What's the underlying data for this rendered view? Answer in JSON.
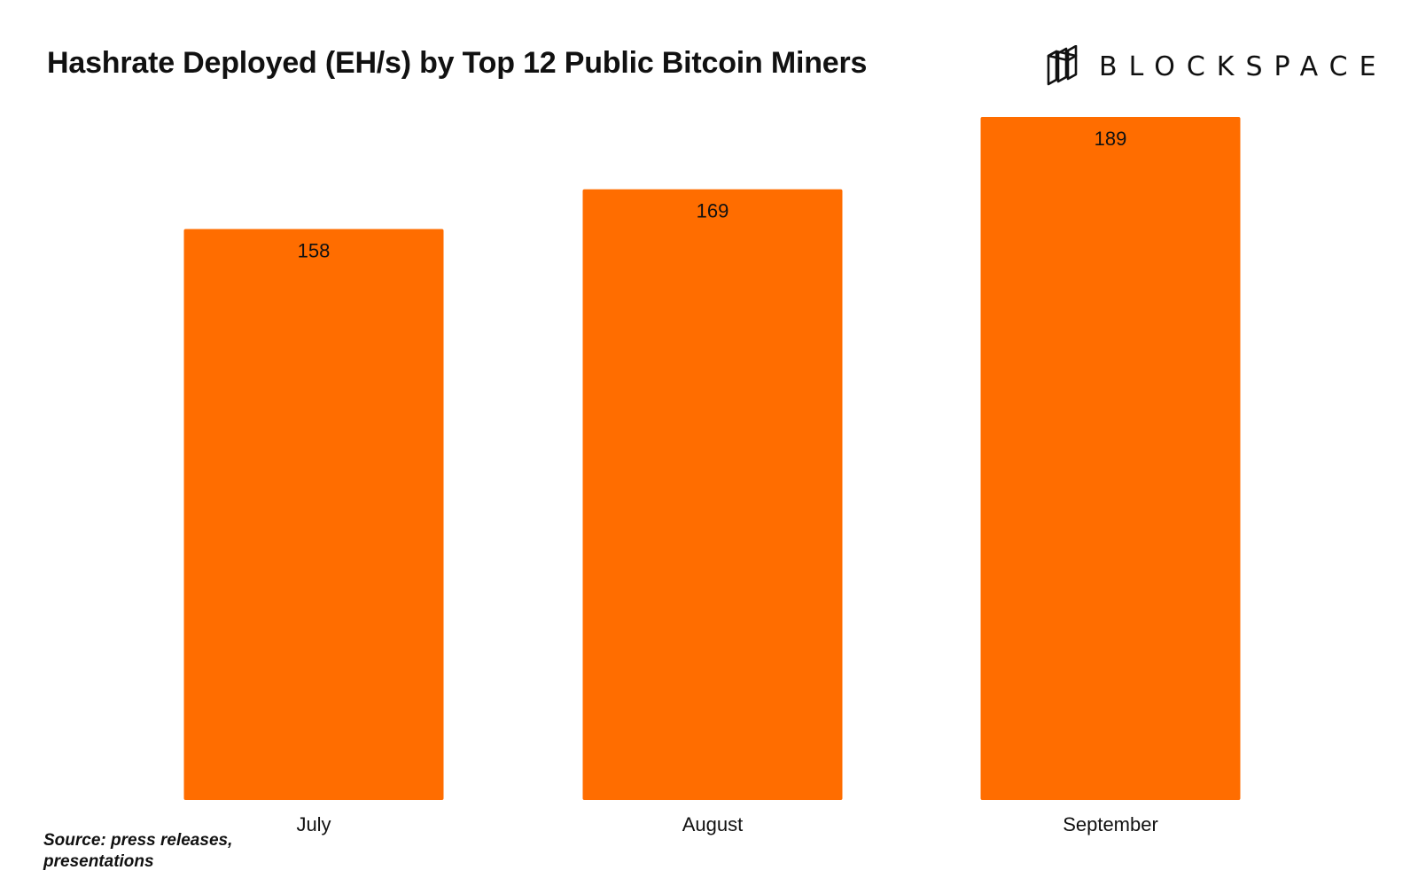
{
  "header": {
    "title": "Hashrate Deployed (EH/s) by Top 12 Public Bitcoin Miners",
    "brand_name": "BLOCKSPACE",
    "brand_icon": "stacked-blocks-icon"
  },
  "footer": {
    "source": "Source: press releases, presentations"
  },
  "colors": {
    "bar": "#ff6d00",
    "text": "#111111",
    "background": "#ffffff"
  },
  "chart_data": {
    "type": "bar",
    "title": "Hashrate Deployed (EH/s) by Top 12 Public Bitcoin Miners",
    "categories": [
      "July",
      "August",
      "September"
    ],
    "values": [
      158,
      169,
      189
    ],
    "value_labels": [
      "158",
      "169",
      "189"
    ],
    "ylim": [
      0,
      189
    ],
    "grid": false,
    "legend": "none"
  }
}
